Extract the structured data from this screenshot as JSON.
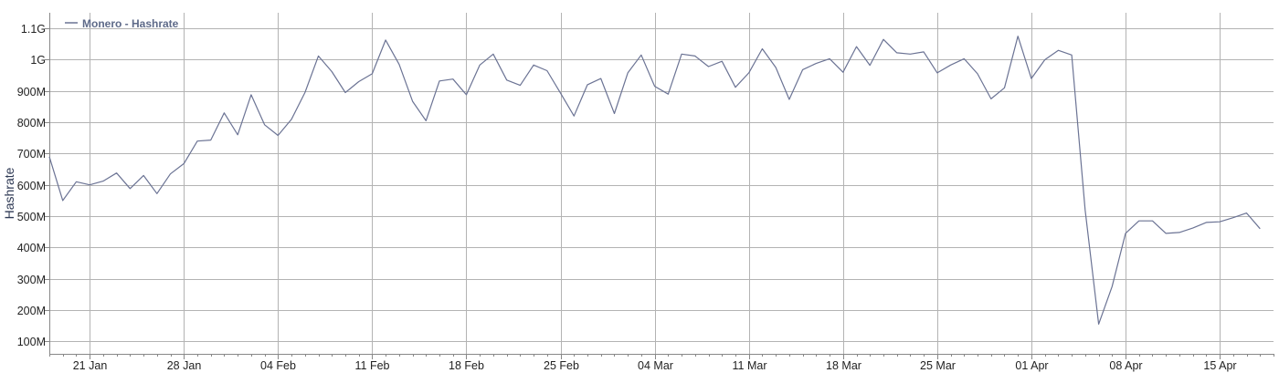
{
  "chart_data": {
    "type": "line",
    "title": "",
    "xlabel": "",
    "ylabel": "Hashrate",
    "legend_position": "top-left",
    "grid": true,
    "colors": {
      "line": "#6b7394",
      "grid": "#b3b3b3",
      "axis": "#888888"
    },
    "ylim": [
      60000000,
      1150000000
    ],
    "yticks": [
      {
        "value": 100000000,
        "label": "100M"
      },
      {
        "value": 200000000,
        "label": "200M"
      },
      {
        "value": 300000000,
        "label": "300M"
      },
      {
        "value": 400000000,
        "label": "400M"
      },
      {
        "value": 500000000,
        "label": "500M"
      },
      {
        "value": 600000000,
        "label": "600M"
      },
      {
        "value": 700000000,
        "label": "700M"
      },
      {
        "value": 800000000,
        "label": "800M"
      },
      {
        "value": 900000000,
        "label": "900M"
      },
      {
        "value": 1000000000,
        "label": "1G"
      },
      {
        "value": 1100000000,
        "label": "1.1G"
      }
    ],
    "xlim": [
      "2018-01-18",
      "2018-04-19"
    ],
    "xticks": [
      {
        "value": "2018-01-21",
        "label": "21 Jan"
      },
      {
        "value": "2018-01-28",
        "label": "28 Jan"
      },
      {
        "value": "2018-02-04",
        "label": "04 Feb"
      },
      {
        "value": "2018-02-11",
        "label": "11 Feb"
      },
      {
        "value": "2018-02-18",
        "label": "18 Feb"
      },
      {
        "value": "2018-02-25",
        "label": "25 Feb"
      },
      {
        "value": "2018-03-04",
        "label": "04 Mar"
      },
      {
        "value": "2018-03-11",
        "label": "11 Mar"
      },
      {
        "value": "2018-03-18",
        "label": "18 Mar"
      },
      {
        "value": "2018-03-25",
        "label": "25 Mar"
      },
      {
        "value": "2018-04-01",
        "label": "01 Apr"
      },
      {
        "value": "2018-04-08",
        "label": "08 Apr"
      },
      {
        "value": "2018-04-15",
        "label": "15 Apr"
      }
    ],
    "series": [
      {
        "name": "Monero - Hashrate",
        "points": [
          [
            "2018-01-18",
            690000000
          ],
          [
            "2018-01-19",
            550000000
          ],
          [
            "2018-01-20",
            610000000
          ],
          [
            "2018-01-21",
            600000000
          ],
          [
            "2018-01-22",
            612000000
          ],
          [
            "2018-01-23",
            638000000
          ],
          [
            "2018-01-24",
            588000000
          ],
          [
            "2018-01-25",
            630000000
          ],
          [
            "2018-01-26",
            572000000
          ],
          [
            "2018-01-27",
            635000000
          ],
          [
            "2018-01-28",
            668000000
          ],
          [
            "2018-01-29",
            740000000
          ],
          [
            "2018-01-30",
            743000000
          ],
          [
            "2018-01-31",
            830000000
          ],
          [
            "2018-02-01",
            760000000
          ],
          [
            "2018-02-02",
            888000000
          ],
          [
            "2018-02-03",
            792000000
          ],
          [
            "2018-02-04",
            758000000
          ],
          [
            "2018-02-05",
            810000000
          ],
          [
            "2018-02-06",
            895000000
          ],
          [
            "2018-02-07",
            1012000000
          ],
          [
            "2018-02-08",
            962000000
          ],
          [
            "2018-02-09",
            895000000
          ],
          [
            "2018-02-10",
            930000000
          ],
          [
            "2018-02-11",
            955000000
          ],
          [
            "2018-02-12",
            1063000000
          ],
          [
            "2018-02-13",
            985000000
          ],
          [
            "2018-02-14",
            867000000
          ],
          [
            "2018-02-15",
            805000000
          ],
          [
            "2018-02-16",
            932000000
          ],
          [
            "2018-02-17",
            938000000
          ],
          [
            "2018-02-18",
            888000000
          ],
          [
            "2018-02-19",
            983000000
          ],
          [
            "2018-02-20",
            1018000000
          ],
          [
            "2018-02-21",
            935000000
          ],
          [
            "2018-02-22",
            918000000
          ],
          [
            "2018-02-23",
            983000000
          ],
          [
            "2018-02-24",
            965000000
          ],
          [
            "2018-02-25",
            893000000
          ],
          [
            "2018-02-26",
            820000000
          ],
          [
            "2018-02-27",
            920000000
          ],
          [
            "2018-02-28",
            940000000
          ],
          [
            "2018-03-01",
            828000000
          ],
          [
            "2018-03-02",
            958000000
          ],
          [
            "2018-03-03",
            1015000000
          ],
          [
            "2018-03-04",
            915000000
          ],
          [
            "2018-03-05",
            890000000
          ],
          [
            "2018-03-06",
            1018000000
          ],
          [
            "2018-03-07",
            1012000000
          ],
          [
            "2018-03-08",
            978000000
          ],
          [
            "2018-03-09",
            995000000
          ],
          [
            "2018-03-10",
            912000000
          ],
          [
            "2018-03-11",
            958000000
          ],
          [
            "2018-03-12",
            1035000000
          ],
          [
            "2018-03-13",
            975000000
          ],
          [
            "2018-03-14",
            873000000
          ],
          [
            "2018-03-15",
            968000000
          ],
          [
            "2018-03-16",
            988000000
          ],
          [
            "2018-03-17",
            1003000000
          ],
          [
            "2018-03-18",
            960000000
          ],
          [
            "2018-03-19",
            1042000000
          ],
          [
            "2018-03-20",
            982000000
          ],
          [
            "2018-03-21",
            1065000000
          ],
          [
            "2018-03-22",
            1022000000
          ],
          [
            "2018-03-23",
            1018000000
          ],
          [
            "2018-03-24",
            1025000000
          ],
          [
            "2018-03-25",
            958000000
          ],
          [
            "2018-03-26",
            983000000
          ],
          [
            "2018-03-27",
            1003000000
          ],
          [
            "2018-03-28",
            955000000
          ],
          [
            "2018-03-29",
            875000000
          ],
          [
            "2018-03-30",
            910000000
          ],
          [
            "2018-03-31",
            1075000000
          ],
          [
            "2018-04-01",
            940000000
          ],
          [
            "2018-04-02",
            1000000000
          ],
          [
            "2018-04-03",
            1030000000
          ],
          [
            "2018-04-04",
            1015000000
          ],
          [
            "2018-04-05",
            520000000
          ],
          [
            "2018-04-06",
            155000000
          ],
          [
            "2018-04-07",
            275000000
          ],
          [
            "2018-04-08",
            445000000
          ],
          [
            "2018-04-09",
            485000000
          ],
          [
            "2018-04-10",
            485000000
          ],
          [
            "2018-04-11",
            445000000
          ],
          [
            "2018-04-12",
            448000000
          ],
          [
            "2018-04-13",
            462000000
          ],
          [
            "2018-04-14",
            480000000
          ],
          [
            "2018-04-15",
            482000000
          ],
          [
            "2018-04-16",
            495000000
          ],
          [
            "2018-04-17",
            510000000
          ],
          [
            "2018-04-18",
            460000000
          ]
        ]
      }
    ]
  }
}
